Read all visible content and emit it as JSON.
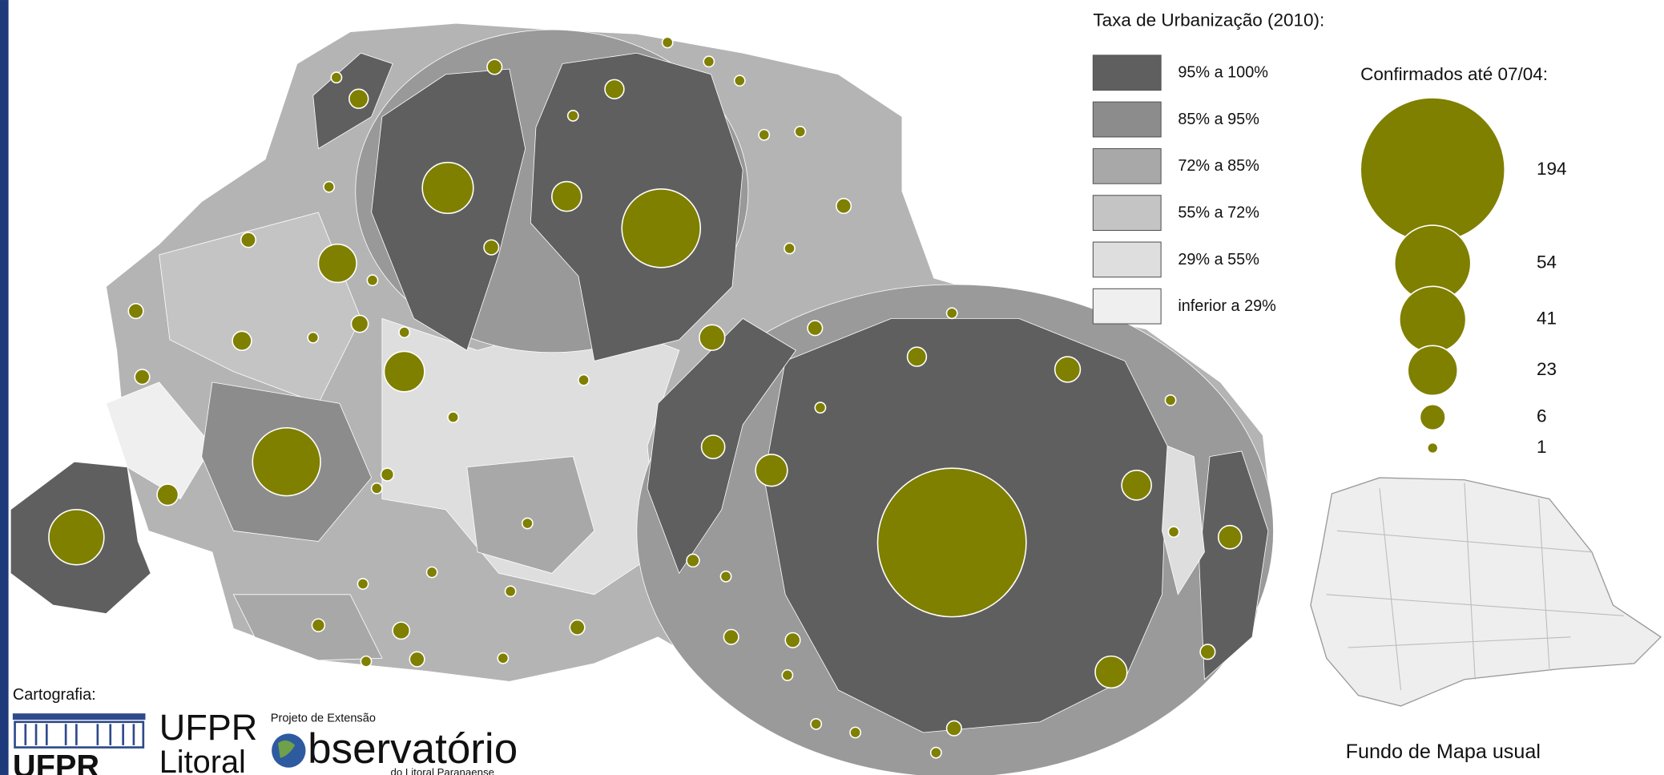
{
  "legend": {
    "title": "Taxa de Urbanização (2010):",
    "classes": [
      {
        "label": "95% a 100%",
        "color": "#5f5f5f"
      },
      {
        "label": "85% a 95%",
        "color": "#8c8c8c"
      },
      {
        "label": "72% a 85%",
        "color": "#a8a8a8"
      },
      {
        "label": "55% a 72%",
        "color": "#c4c4c4"
      },
      {
        "label": "29% a 55%",
        "color": "#dedede"
      },
      {
        "label": "inferior a 29%",
        "color": "#efefef"
      }
    ]
  },
  "bubble_legend": {
    "title": "Confirmados até 07/04:",
    "values": [
      194,
      54,
      41,
      23,
      6,
      1
    ],
    "color": "#7f7f00"
  },
  "inset": {
    "caption": "Fundo de Mapa usual"
  },
  "credits": {
    "label": "Cartografia:",
    "logo1": "UFPR",
    "logo2_top": "UFPR",
    "logo2_bottom": "Litoral",
    "project": "Projeto de Extensão",
    "observatory": "bservatório",
    "observatory_sub": "do Litoral Paranaense"
  }
}
